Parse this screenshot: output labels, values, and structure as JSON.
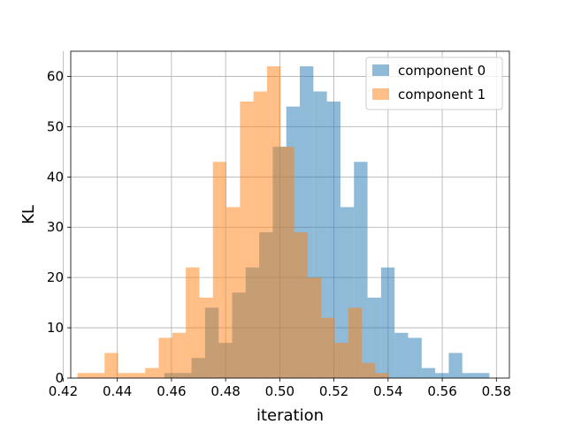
{
  "chart_data": {
    "type": "bar",
    "title": "",
    "xlabel": "iteration",
    "ylabel": "KL",
    "xlim": [
      0.4228,
      0.5848
    ],
    "ylim": [
      0,
      65
    ],
    "grid": true,
    "legend_position": "top-right",
    "x_ticks": [
      0.42,
      0.44,
      0.46,
      0.48,
      0.5,
      0.52,
      0.54,
      0.56,
      0.58
    ],
    "x_tick_labels": [
      "0.42",
      "0.44",
      "0.46",
      "0.48",
      "0.50",
      "0.52",
      "0.54",
      "0.56",
      "0.58"
    ],
    "y_ticks": [
      0,
      10,
      20,
      30,
      40,
      50,
      60
    ],
    "y_tick_labels": [
      "0",
      "10",
      "20",
      "30",
      "40",
      "50",
      "60"
    ],
    "series": [
      {
        "name": "component 0",
        "color": "#1f77b4",
        "alpha": 0.5,
        "bin_edges": [
          0.4574,
          0.4624,
          0.4674,
          0.4724,
          0.4774,
          0.4824,
          0.4874,
          0.4924,
          0.4974,
          0.5024,
          0.5074,
          0.5124,
          0.5174,
          0.5224,
          0.5274,
          0.5324,
          0.5374,
          0.5424,
          0.5474,
          0.5524,
          0.5574,
          0.5624,
          0.5674,
          0.5724,
          0.5774
        ],
        "values": [
          1,
          1,
          4,
          14,
          7,
          17,
          22,
          29,
          46,
          54,
          62,
          57,
          55,
          34,
          43,
          16,
          22,
          9,
          8,
          2,
          1,
          5,
          1,
          1
        ]
      },
      {
        "name": "component 1",
        "color": "#ff7f0e",
        "alpha": 0.5,
        "bin_edges": [
          0.4253,
          0.4303,
          0.4353,
          0.4403,
          0.4453,
          0.4503,
          0.4553,
          0.4603,
          0.4653,
          0.4703,
          0.4753,
          0.4803,
          0.4853,
          0.4903,
          0.4953,
          0.5003,
          0.5053,
          0.5103,
          0.5153,
          0.5203,
          0.5253,
          0.5303,
          0.5353,
          0.5403
        ],
        "values": [
          1,
          1,
          5,
          1,
          1,
          2,
          8,
          9,
          22,
          16,
          43,
          34,
          55,
          57,
          62,
          46,
          29,
          20,
          12,
          7,
          14,
          3,
          1
        ]
      }
    ]
  }
}
